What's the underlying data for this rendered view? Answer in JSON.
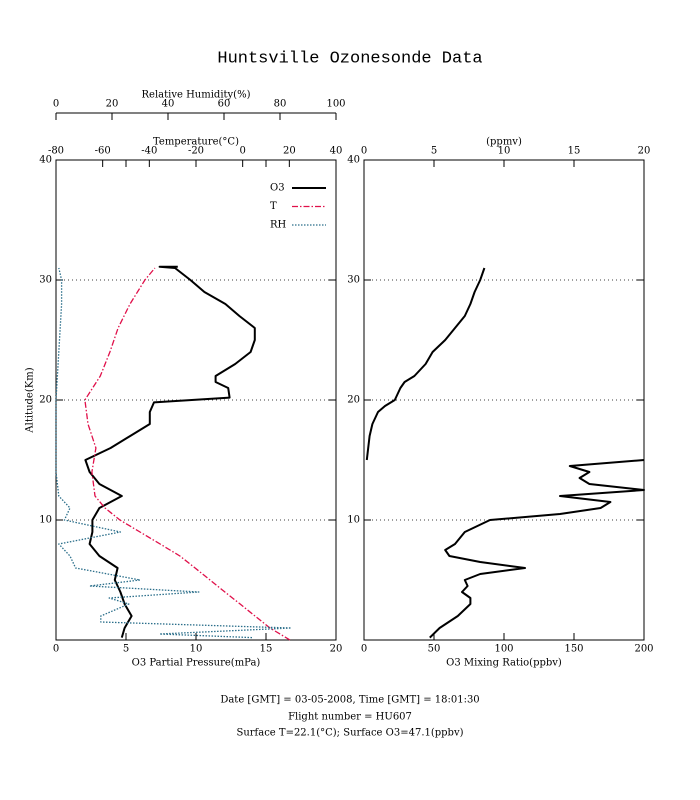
{
  "title": "Huntsville Ozonesonde Data",
  "footer": [
    "Date [GMT] = 03-05-2008,  Time [GMT] = 18:01:30",
    "Flight number = HU607",
    "Surface T=22.1(°C); Surface O3=47.1(ppbv)"
  ],
  "chart_data": [
    {
      "type": "line",
      "xlabel": "O3 Partial Pressure(mPa)",
      "xlim": [
        0,
        20
      ],
      "xticks": [
        0,
        5,
        10,
        15,
        20
      ],
      "x2label": "Temperature(°C)",
      "x2lim": [
        -80,
        40
      ],
      "x2ticks": [
        -80,
        -60,
        -40,
        -20,
        0,
        20,
        40
      ],
      "x3label": "Relative Humidity(%)",
      "x3lim": [
        0,
        100
      ],
      "x3ticks": [
        0,
        20,
        40,
        60,
        80,
        100
      ],
      "ylabel": "Altitude(Km)",
      "ylim": [
        0,
        40
      ],
      "yticks": [
        10,
        20,
        30,
        40
      ],
      "grid": true,
      "legend": "upper right",
      "series": [
        {
          "name": "O3",
          "color": "#000000",
          "axis": "x",
          "dash": "solid",
          "altitude": [
            0.2,
            1,
            2,
            3,
            4,
            5,
            6,
            7,
            8,
            9,
            10,
            11,
            12,
            13,
            14,
            15,
            16,
            17,
            18,
            19,
            19.8,
            20.2,
            21,
            21.5,
            22,
            23,
            24,
            25,
            26,
            27,
            28,
            29,
            30,
            31,
            31.1,
            31.1
          ],
          "values": [
            4.7,
            4.9,
            5.4,
            4.9,
            4.6,
            4.2,
            4.4,
            3.1,
            2.4,
            2.6,
            2.6,
            3.1,
            4.7,
            3.1,
            2.4,
            2.1,
            3.9,
            5.3,
            6.7,
            6.7,
            7.0,
            12.4,
            12.3,
            11.4,
            11.4,
            12.8,
            13.9,
            14.2,
            14.2,
            13.1,
            12.1,
            10.6,
            9.6,
            8.5,
            7.4,
            8.7
          ]
        },
        {
          "name": "T",
          "color": "#e0104a",
          "axis": "x2",
          "dash": "dashdot",
          "altitude": [
            0,
            1,
            2,
            3,
            4,
            5,
            6,
            7,
            8,
            9,
            10,
            11,
            12,
            14,
            16,
            18,
            20,
            22,
            24,
            26,
            28,
            30,
            31
          ],
          "values": [
            20.3,
            11.7,
            5.3,
            -1.1,
            -7.6,
            -14,
            -20.4,
            -26.9,
            -35.4,
            -44,
            -52.6,
            -59,
            -63.3,
            -64.6,
            -62.9,
            -66.3,
            -67.6,
            -61,
            -56.9,
            -53.4,
            -48.3,
            -41.9,
            -37.6
          ]
        },
        {
          "name": "RH",
          "color": "#2a6e8a",
          "axis": "x3",
          "dash": "dotted",
          "altitude": [
            0.2,
            0.5,
            1,
            1.5,
            2,
            3,
            3.5,
            4,
            4.5,
            5,
            6,
            7,
            8,
            9,
            10,
            11,
            12,
            13,
            14,
            20,
            28,
            30,
            31
          ],
          "values": [
            70,
            37,
            84,
            16,
            16,
            26,
            19,
            51,
            12,
            30,
            7,
            5,
            1,
            23,
            3,
            5,
            1,
            0.5,
            0,
            0,
            2,
            2,
            1
          ]
        }
      ]
    },
    {
      "type": "line",
      "xlabel": "O3 Mixing Ratio(ppbv)",
      "xlim": [
        0,
        200
      ],
      "xticks": [
        0,
        50,
        100,
        150,
        200
      ],
      "x2label": "(ppmv)",
      "x2lim": [
        0,
        20
      ],
      "x2ticks": [
        0,
        5,
        10,
        15,
        20
      ],
      "ylim": [
        0,
        40
      ],
      "yticks": [
        10,
        20,
        30,
        40
      ],
      "grid": true,
      "series": [
        {
          "color": "#000000",
          "axis": "x",
          "dash": "solid",
          "altitude": [
            0.2,
            1,
            2,
            3,
            3.5,
            4,
            4.5,
            5,
            5.5,
            6,
            6.5,
            7,
            7.5,
            8,
            9,
            10,
            10.5,
            11,
            11.5,
            12,
            12.5,
            13,
            13.5,
            14,
            14.5,
            15
          ],
          "values": [
            47,
            54,
            67,
            76,
            76,
            70,
            74,
            72,
            83,
            115,
            83,
            61,
            58,
            65,
            72,
            90,
            140,
            169,
            176,
            140,
            200,
            161,
            154,
            161,
            147,
            200
          ]
        },
        {
          "color": "#000000",
          "axis": "x2",
          "dash": "solid",
          "altitude": [
            15,
            16,
            17,
            18,
            19,
            19.5,
            20,
            21,
            21.5,
            22,
            23,
            24,
            25,
            26,
            27,
            28,
            29,
            30,
            31
          ],
          "values": [
            0.2,
            0.3,
            0.4,
            0.6,
            1.0,
            1.5,
            2.2,
            2.6,
            2.9,
            3.6,
            4.4,
            4.9,
            5.8,
            6.5,
            7.2,
            7.6,
            7.9,
            8.3,
            8.6
          ]
        }
      ]
    }
  ]
}
